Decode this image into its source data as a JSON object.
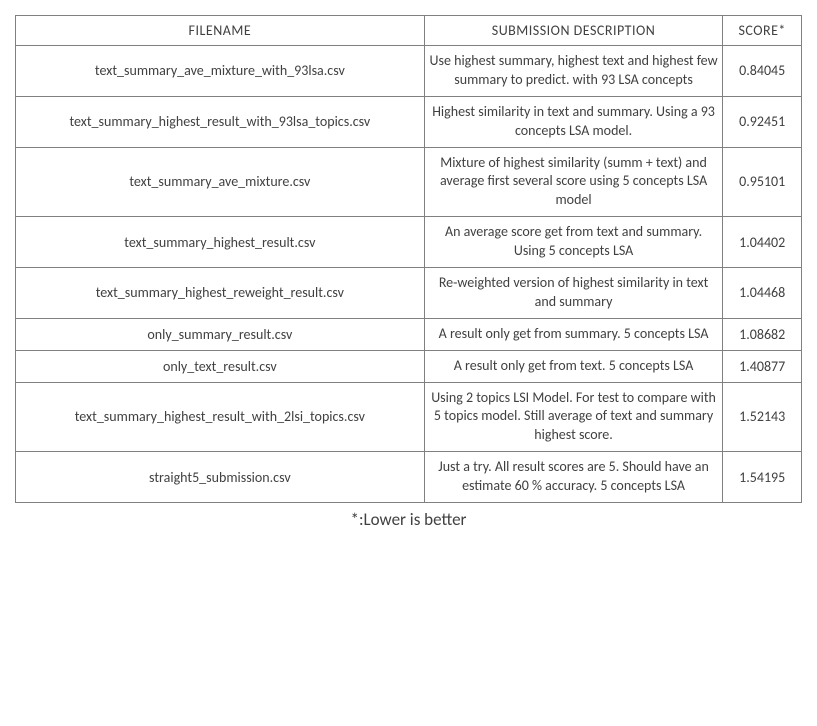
{
  "table": {
    "columns": [
      "FILENAME",
      "SUBMISSION DESCRIPTION",
      "SCORE*"
    ],
    "column_widths_pct": [
      52,
      38,
      10
    ],
    "border_color": "#808080",
    "text_color": "#404040",
    "font_size_pt": 14,
    "rows": [
      {
        "filename": "text_summary_ave_mixture_with_93lsa.csv",
        "description": "Use highest summary, highest text and highest few summary to predict. with 93 LSA concepts",
        "score": "0.84045"
      },
      {
        "filename": "text_summary_highest_result_with_93lsa_topics.csv",
        "description": "Highest similarity in text and summary. Using a 93 concepts LSA model.",
        "score": "0.92451"
      },
      {
        "filename": "text_summary_ave_mixture.csv",
        "description": "Mixture of highest similarity (summ + text) and average first several score using 5 concepts LSA model",
        "score": "0.95101"
      },
      {
        "filename": "text_summary_highest_result.csv",
        "description": "An average score get from text and summary. Using 5 concepts LSA",
        "score": "1.04402"
      },
      {
        "filename": "text_summary_highest_reweight_result.csv",
        "description": "Re-weighted version of highest similarity in text and summary",
        "score": "1.04468"
      },
      {
        "filename": "only_summary_result.csv",
        "description": "A result only get from summary. 5 concepts LSA",
        "score": "1.08682"
      },
      {
        "filename": "only_text_result.csv",
        "description": "A result only get from text. 5 concepts LSA",
        "score": "1.40877"
      },
      {
        "filename": "text_summary_highest_result_with_2lsi_topics.csv",
        "description": "Using 2 topics LSI Model. For test to compare with 5 topics model. Still average of text and summary highest score.",
        "score": "1.52143"
      },
      {
        "filename": "straight5_submission.csv",
        "description": "Just a try. All result scores are 5. Should have an estimate 60 % accuracy. 5 concepts LSA",
        "score": "1.54195"
      }
    ]
  },
  "footnote": "*:Lower is better"
}
